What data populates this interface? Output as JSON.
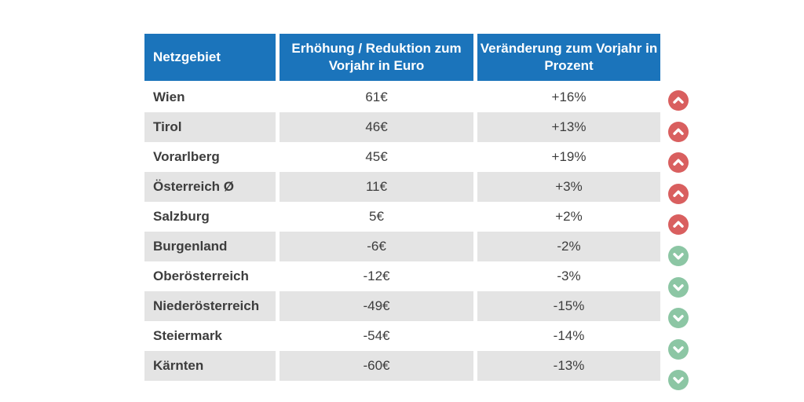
{
  "table": {
    "columns": [
      {
        "label": "Netzgebiet"
      },
      {
        "label": "Erhöhung / Reduktion zum Vorjahr in Euro"
      },
      {
        "label": "Veränderung zum Vorjahr in Prozent"
      }
    ],
    "rows": [
      {
        "region": "Wien",
        "euro": "61€",
        "percent": "+16%",
        "trend": "up"
      },
      {
        "region": "Tirol",
        "euro": "46€",
        "percent": "+13%",
        "trend": "up"
      },
      {
        "region": "Vorarlberg",
        "euro": "45€",
        "percent": "+19%",
        "trend": "up"
      },
      {
        "region": "Österreich Ø",
        "euro": "11€",
        "percent": "+3%",
        "trend": "up"
      },
      {
        "region": "Salzburg",
        "euro": "5€",
        "percent": "+2%",
        "trend": "up"
      },
      {
        "region": "Burgenland",
        "euro": "-6€",
        "percent": "-2%",
        "trend": "down"
      },
      {
        "region": "Oberösterreich",
        "euro": "-12€",
        "percent": "-3%",
        "trend": "down"
      },
      {
        "region": "Niederösterreich",
        "euro": "-49€",
        "percent": "-15%",
        "trend": "down"
      },
      {
        "region": "Steiermark",
        "euro": "-54€",
        "percent": "-14%",
        "trend": "down"
      },
      {
        "region": "Kärnten",
        "euro": "-60€",
        "percent": "-13%",
        "trend": "down"
      }
    ]
  },
  "colors": {
    "header_bg": "#1b74bb",
    "header_text": "#ffffff",
    "row_alt_bg": "#e4e4e4",
    "row_text": "#3d3d3d",
    "trend_up": "#d95f5f",
    "trend_down": "#8cc6a4"
  },
  "chart_data": {
    "type": "table",
    "title": "",
    "columns": [
      "Netzgebiet",
      "Erhöhung / Reduktion zum Vorjahr in Euro",
      "Veränderung zum Vorjahr in Prozent"
    ],
    "categories": [
      "Wien",
      "Tirol",
      "Vorarlberg",
      "Österreich Ø",
      "Salzburg",
      "Burgenland",
      "Oberösterreich",
      "Niederösterreich",
      "Steiermark",
      "Kärnten"
    ],
    "series": [
      {
        "name": "Erhöhung / Reduktion zum Vorjahr in Euro",
        "values": [
          61,
          46,
          45,
          11,
          5,
          -6,
          -12,
          -49,
          -54,
          -60
        ]
      },
      {
        "name": "Veränderung zum Vorjahr in Prozent",
        "values": [
          16,
          13,
          19,
          3,
          2,
          -2,
          -3,
          -15,
          -14,
          -13
        ]
      }
    ],
    "trend_indicators": [
      "up",
      "up",
      "up",
      "up",
      "up",
      "down",
      "down",
      "down",
      "down",
      "down"
    ]
  }
}
